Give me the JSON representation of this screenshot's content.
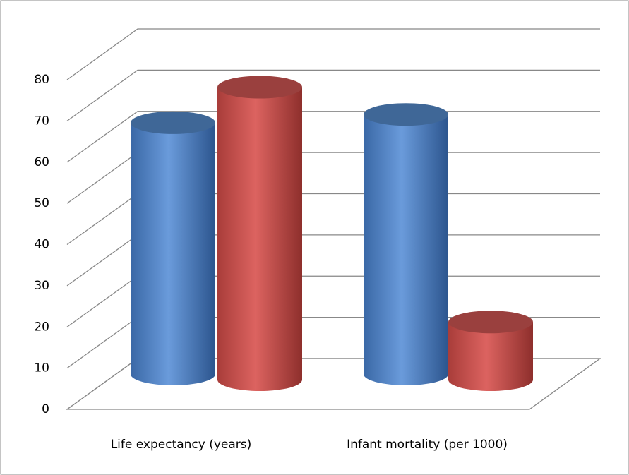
{
  "chart_data": {
    "type": "bar3d",
    "categories": [
      "Life expectancy (years)",
      "Infant mortality (per 1000)"
    ],
    "series": [
      {
        "color": "#4f81bd",
        "values": [
          61,
          63
        ]
      },
      {
        "color": "#c0504d",
        "values": [
          71,
          14
        ]
      }
    ],
    "ylim": [
      0,
      80
    ],
    "yticks": [
      0,
      10,
      20,
      30,
      40,
      50,
      60,
      70,
      80
    ],
    "grid": true
  }
}
